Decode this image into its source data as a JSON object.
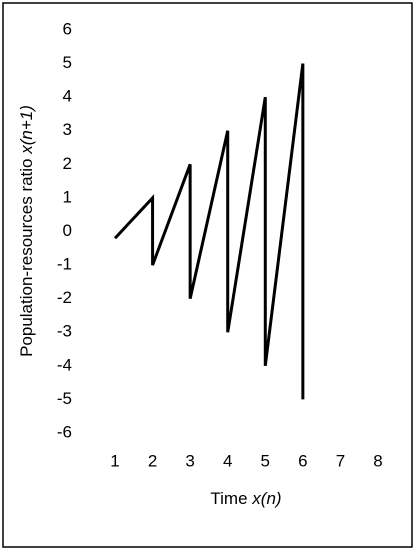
{
  "chart_data": {
    "type": "line",
    "xlabel": [
      "Time",
      "x(n)"
    ],
    "ylabel": [
      "Population-resources ratio",
      "x(n+1)"
    ],
    "x": [
      1,
      2,
      2,
      3,
      3,
      4,
      4,
      5,
      5,
      6,
      6
    ],
    "values": [
      -0.2,
      1,
      -1,
      2,
      -2,
      3,
      -3,
      4,
      -4,
      5,
      -5
    ],
    "color": "#000000",
    "xlim": [
      1,
      8
    ],
    "xticks": [
      1,
      2,
      3,
      4,
      5,
      6,
      7,
      8
    ],
    "ylim": [
      -6,
      6
    ],
    "yticks": [
      -6,
      -5,
      -4,
      -3,
      -2,
      -1,
      0,
      1,
      2,
      3,
      4,
      5,
      6
    ],
    "grid": false
  }
}
